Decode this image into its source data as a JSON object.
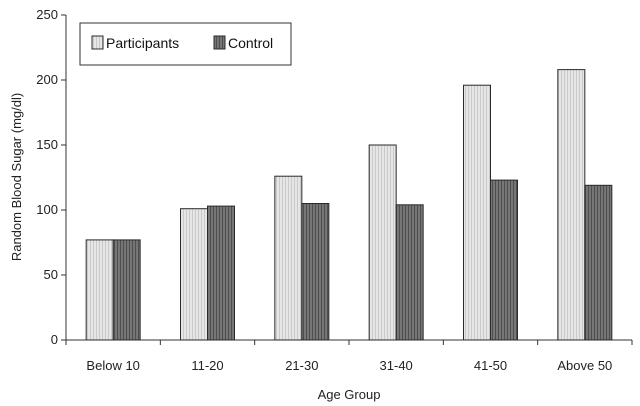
{
  "chart_data": {
    "type": "bar",
    "title": "",
    "xlabel": "Age Group",
    "ylabel": "Random Blood Sugar (mg/dl)",
    "ylim": [
      0,
      250
    ],
    "yticks": [
      0,
      50,
      100,
      150,
      200,
      250
    ],
    "categories": [
      "Below 10",
      "11-20",
      "21-30",
      "31-40",
      "41-50",
      "Above 50"
    ],
    "series": [
      {
        "name": "Participants",
        "values": [
          77,
          101,
          126,
          150,
          196,
          208
        ]
      },
      {
        "name": "Control",
        "values": [
          77,
          103,
          105,
          104,
          123,
          119
        ]
      }
    ],
    "legend_position": "top-left",
    "grid": false
  },
  "colors": {
    "participants_fill": "#e4e4e4",
    "control_fill": "#6e6e6e",
    "bar_stroke": "#2a2a2a",
    "axis": "#333333"
  }
}
